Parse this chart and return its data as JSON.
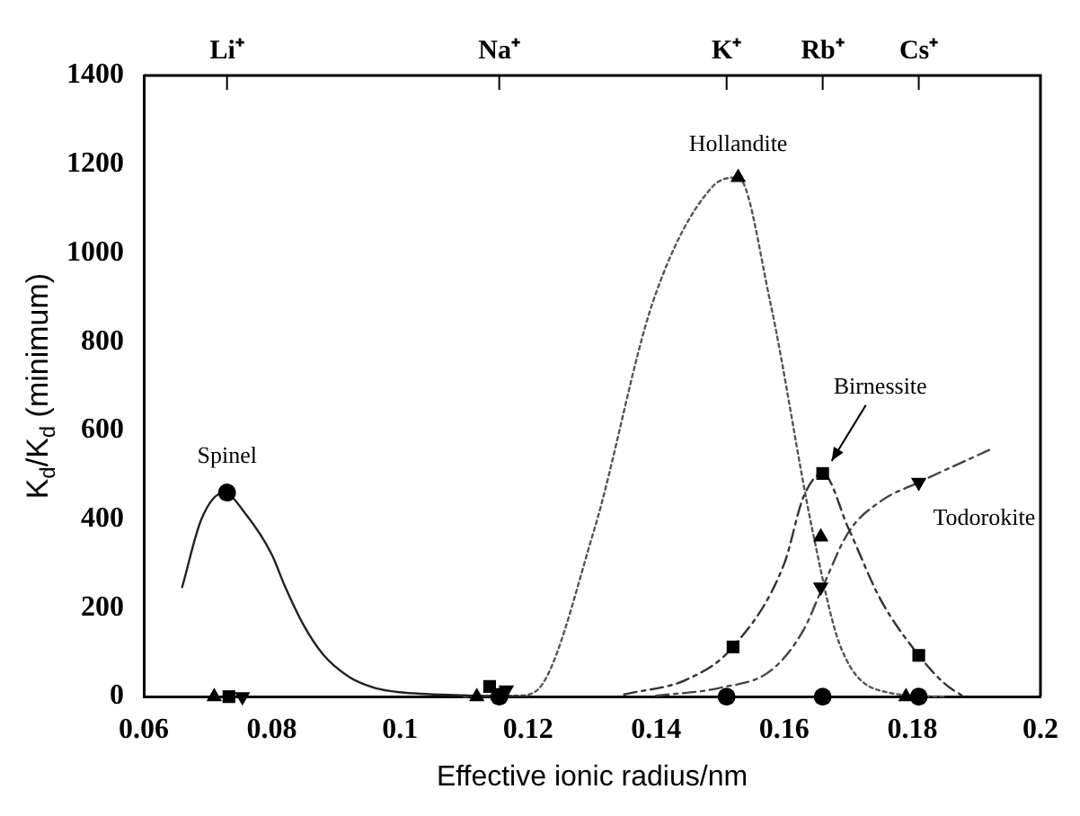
{
  "chart_data": {
    "type": "scatter",
    "xlabel": "Effective ionic radius/nm",
    "ylabel": "K$_{d}$/K$_{d}$ (minimum)",
    "xlim": [
      0.06,
      0.2
    ],
    "xticks": [
      0.06,
      0.08,
      0.1,
      0.12,
      0.14,
      0.16,
      0.18,
      0.2
    ],
    "ylim": [
      0,
      1400
    ],
    "yticks": [
      0,
      200,
      400,
      600,
      800,
      1000,
      1200,
      1400
    ],
    "grid": false,
    "legend": false,
    "series": [
      {
        "type": "line",
        "color": "#222222",
        "line_style": "solid",
        "marker": "none",
        "x": [
          0.066,
          0.069,
          0.0725,
          0.076,
          0.08,
          0.082,
          0.085,
          0.088,
          0.092,
          0.096,
          0.1,
          0.11,
          0.12
        ],
        "values": [
          247,
          400,
          460,
          410,
          320,
          250,
          160,
          95,
          45,
          20,
          10,
          3,
          0
        ]
      },
      {
        "type": "line",
        "color": "#555555",
        "line_style": "dotted",
        "marker": "none",
        "x": [
          0.11,
          0.118,
          0.121,
          0.1303,
          0.1395,
          0.1487,
          0.1528,
          0.1578,
          0.1644,
          0.1687,
          0.176,
          0.185
        ],
        "values": [
          0,
          2,
          10,
          375,
          890,
          1148,
          1170,
          890,
          375,
          116,
          10,
          0
        ]
      },
      {
        "type": "line",
        "color": "#333333",
        "line_style": "dashed",
        "marker": "none",
        "x": [
          0.135,
          0.145,
          0.152,
          0.16,
          0.163,
          0.166,
          0.17,
          0.175,
          0.181,
          0.185,
          0.188
        ],
        "values": [
          5,
          40,
          112,
          300,
          450,
          503,
          380,
          220,
          93,
          30,
          0
        ]
      },
      {
        "type": "line",
        "color": "#444444",
        "line_style": "dashed",
        "marker": "none",
        "x": [
          0.14,
          0.15,
          0.158,
          0.163,
          0.166,
          0.17,
          0.175,
          0.181,
          0.192
        ],
        "values": [
          2,
          20,
          60,
          150,
          247,
          370,
          440,
          483,
          556
        ]
      },
      {
        "type": "scatter",
        "color": "#000000",
        "marker": "circle",
        "x": [
          0.073,
          0.1155,
          0.151,
          0.166,
          0.181
        ],
        "values": [
          460,
          0,
          0,
          0,
          0
        ]
      },
      {
        "type": "scatter",
        "color": "#000000",
        "marker": "triangle",
        "x": [
          0.071,
          0.112,
          0.1528,
          0.1657,
          0.179
        ],
        "values": [
          0,
          0,
          1170,
          360,
          0
        ]
      },
      {
        "type": "scatter",
        "color": "#000000",
        "marker": "square",
        "x": [
          0.0733,
          0.114,
          0.152,
          0.166,
          0.181
        ],
        "values": [
          0,
          23,
          112,
          503,
          93
        ]
      },
      {
        "type": "scatter",
        "color": "#000000",
        "marker": "triangle_down",
        "x": [
          0.0754,
          0.1166,
          0.1657,
          0.181
        ],
        "values": [
          0,
          15,
          247,
          483
        ]
      }
    ],
    "annotations": [
      {
        "text": "Spinel",
        "x": 0.073,
        "y": 460
      },
      {
        "text": "Hollandite",
        "x": 0.1528,
        "y": 1170
      },
      {
        "text": "Birnessite",
        "x": 0.166,
        "y": 503
      },
      {
        "text": "Todorokite",
        "x": 0.181,
        "y": 483
      },
      "Li⁺",
      "Na⁺",
      "K⁺",
      "Rb⁺",
      "Cs⁺"
    ]
  }
}
